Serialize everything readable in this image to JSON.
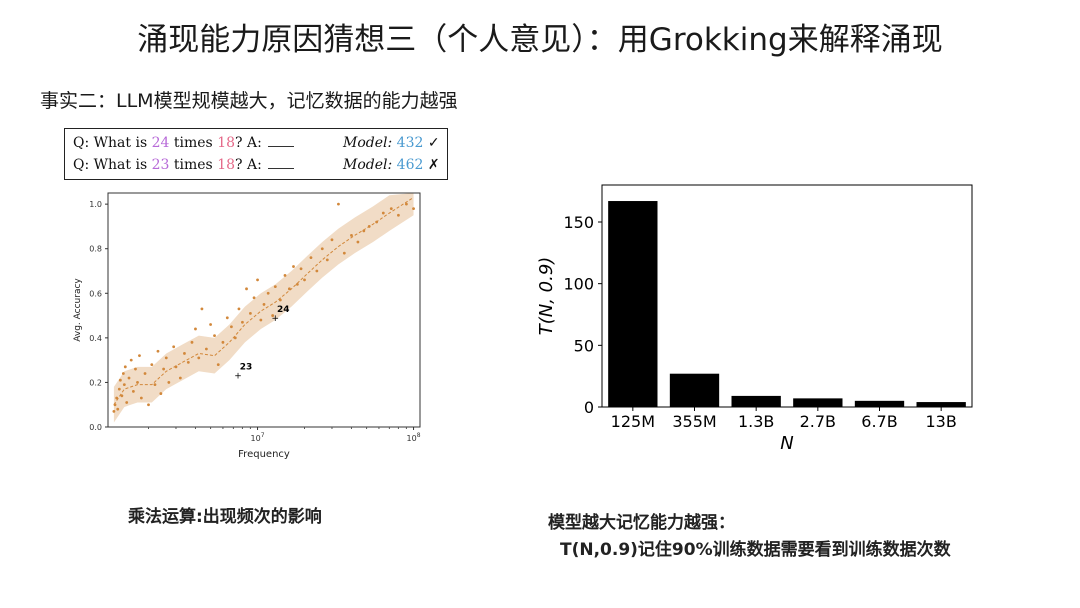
{
  "title": "涌现能力原因猜想三（个人意见）：用Grokking来解释涌现",
  "fact": "事实二：LLM模型规模越大，记忆数据的能力越强",
  "qa_box": {
    "line1": {
      "q": "Q: What is",
      "a": "24",
      "times": "times",
      "b": "18",
      "ans": "? A:",
      "model_label": "Model:",
      "model_value": "432",
      "mark": "✓"
    },
    "line2": {
      "q": "Q: What is",
      "a": "23",
      "times": "times",
      "b": "18",
      "ans": "? A:",
      "model_label": "Model:",
      "model_value": "462",
      "mark": "✗"
    }
  },
  "captions": {
    "left": "乘法运算:出现频次的影响",
    "right_line1": "模型越大记忆能力越强：",
    "right_line2": "T(N,0.9)记住90%训练数据需要看到训练数据次数"
  },
  "colors": {
    "scatter": "#d2883b",
    "band": "#f1dcc6",
    "bar": "#000000",
    "purple": "#b76ad8",
    "pink": "#e56a8a",
    "blue": "#4a9ad0"
  },
  "chart_data": [
    {
      "type": "scatter",
      "xlabel": "Frequency",
      "ylabel": "Avg. Accuracy",
      "xscale": "log",
      "xlim": [
        1100000,
        110000000
      ],
      "ylim": [
        0,
        1.05
      ],
      "x_ticks": [
        "10^7",
        "10^8"
      ],
      "y_ticks": [
        "0.0",
        "0.2",
        "0.4",
        "0.6",
        "0.8",
        "1.0"
      ],
      "points": [
        [
          1200000,
          0.07
        ],
        [
          1220000,
          0.1
        ],
        [
          1250000,
          0.13
        ],
        [
          1270000,
          0.08
        ],
        [
          1300000,
          0.17
        ],
        [
          1320000,
          0.21
        ],
        [
          1350000,
          0.14
        ],
        [
          1380000,
          0.24
        ],
        [
          1400000,
          0.19
        ],
        [
          1420000,
          0.27
        ],
        [
          1450000,
          0.11
        ],
        [
          1500000,
          0.22
        ],
        [
          1550000,
          0.3
        ],
        [
          1600000,
          0.16
        ],
        [
          1650000,
          0.26
        ],
        [
          1700000,
          0.2
        ],
        [
          1750000,
          0.32
        ],
        [
          1800000,
          0.13
        ],
        [
          1900000,
          0.24
        ],
        [
          2000000,
          0.1
        ],
        [
          2100000,
          0.28
        ],
        [
          2200000,
          0.19
        ],
        [
          2300000,
          0.34
        ],
        [
          2400000,
          0.15
        ],
        [
          2500000,
          0.26
        ],
        [
          2600000,
          0.31
        ],
        [
          2700000,
          0.2
        ],
        [
          2900000,
          0.36
        ],
        [
          3000000,
          0.27
        ],
        [
          3200000,
          0.22
        ],
        [
          3400000,
          0.33
        ],
        [
          3600000,
          0.29
        ],
        [
          3800000,
          0.38
        ],
        [
          4000000,
          0.44
        ],
        [
          4200000,
          0.31
        ],
        [
          4400000,
          0.53
        ],
        [
          4700000,
          0.35
        ],
        [
          5000000,
          0.46
        ],
        [
          5300000,
          0.41
        ],
        [
          5600000,
          0.28
        ],
        [
          6000000,
          0.38
        ],
        [
          6400000,
          0.49
        ],
        [
          6800000,
          0.45
        ],
        [
          7200000,
          0.4
        ],
        [
          7600000,
          0.53
        ],
        [
          8000000,
          0.47
        ],
        [
          8500000,
          0.62
        ],
        [
          9000000,
          0.51
        ],
        [
          9500000,
          0.58
        ],
        [
          10000000,
          0.66
        ],
        [
          10500000,
          0.48
        ],
        [
          11000000,
          0.55
        ],
        [
          11700000,
          0.6
        ],
        [
          12500000,
          0.5
        ],
        [
          13000000,
          0.63
        ],
        [
          14000000,
          0.57
        ],
        [
          15000000,
          0.68
        ],
        [
          16000000,
          0.62
        ],
        [
          17000000,
          0.72
        ],
        [
          18000000,
          0.64
        ],
        [
          19000000,
          0.71
        ],
        [
          20000000,
          0.66
        ],
        [
          22000000,
          0.76
        ],
        [
          24000000,
          0.7
        ],
        [
          26000000,
          0.8
        ],
        [
          28000000,
          0.75
        ],
        [
          30000000,
          0.84
        ],
        [
          33000000,
          1.0
        ],
        [
          36000000,
          0.78
        ],
        [
          40000000,
          0.86
        ],
        [
          44000000,
          0.83
        ],
        [
          48000000,
          0.88
        ],
        [
          52000000,
          0.9
        ],
        [
          58000000,
          0.92
        ],
        [
          64000000,
          0.96
        ],
        [
          72000000,
          0.98
        ],
        [
          80000000,
          0.95
        ],
        [
          90000000,
          1.0
        ],
        [
          100000000,
          0.98
        ]
      ],
      "trend": [
        [
          1200000,
          0.1
        ],
        [
          1400000,
          0.17
        ],
        [
          1700000,
          0.19
        ],
        [
          2100000,
          0.19
        ],
        [
          2600000,
          0.25
        ],
        [
          3300000,
          0.29
        ],
        [
          4200000,
          0.33
        ],
        [
          5300000,
          0.32
        ],
        [
          6600000,
          0.38
        ],
        [
          8300000,
          0.46
        ],
        [
          10500000,
          0.52
        ],
        [
          13000000,
          0.56
        ],
        [
          16500000,
          0.62
        ],
        [
          21000000,
          0.69
        ],
        [
          26000000,
          0.75
        ],
        [
          33000000,
          0.81
        ],
        [
          42000000,
          0.86
        ],
        [
          55000000,
          0.91
        ],
        [
          70000000,
          0.96
        ],
        [
          100000000,
          1.03
        ]
      ],
      "band_halfwidth": 0.08,
      "annotations": [
        {
          "label": "24",
          "x": 13000000,
          "y": 0.49
        },
        {
          "label": "23",
          "x": 7500000,
          "y": 0.23
        }
      ]
    },
    {
      "type": "bar",
      "xlabel": "N",
      "ylabel": "T(N, 0.9)",
      "categories": [
        "125M",
        "355M",
        "1.3B",
        "2.7B",
        "6.7B",
        "13B"
      ],
      "values": [
        167,
        27,
        9,
        7,
        5,
        4
      ],
      "ylim": [
        0,
        180
      ],
      "y_ticks": [
        "0",
        "50",
        "100",
        "150"
      ]
    }
  ]
}
